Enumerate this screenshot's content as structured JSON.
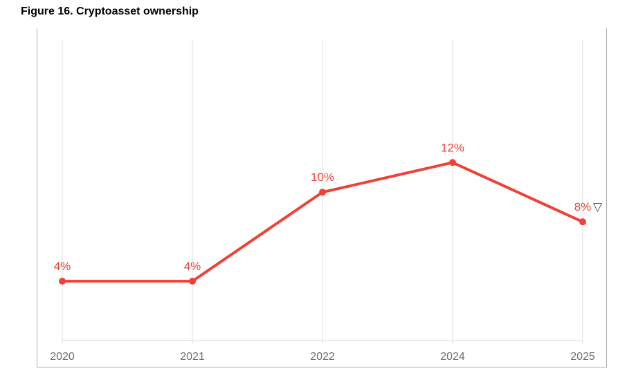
{
  "page": {
    "title": "Figure 16. Cryptoasset ownership"
  },
  "chart_data": {
    "type": "line",
    "title": "Figure 16. Cryptoasset ownership",
    "categories": [
      "2020",
      "2021",
      "2022",
      "2024",
      "2025"
    ],
    "series": [
      {
        "name": "Cryptoasset ownership",
        "values": [
          4,
          4,
          10,
          12,
          8
        ]
      }
    ],
    "point_labels": [
      "4%",
      "4%",
      "10%",
      "12%",
      "8%"
    ],
    "annotation": {
      "text": "▽",
      "attached_category": "2025",
      "icon": "triangle-down-icon"
    },
    "xlabel": "",
    "ylabel": "",
    "ylim": [
      0,
      20.3
    ],
    "grid": "vertical-on",
    "legend": "none",
    "colors": {
      "line": "#ef4135",
      "marker": "#ef4135",
      "point_label": "#ef4135",
      "annotation": "#4a4a4a",
      "gridline": "#dfdfdf",
      "axis_line": "#d9d9d9",
      "frame_border": "#ababab",
      "tick_label": "#6e6e6e",
      "title": "#000000"
    }
  }
}
